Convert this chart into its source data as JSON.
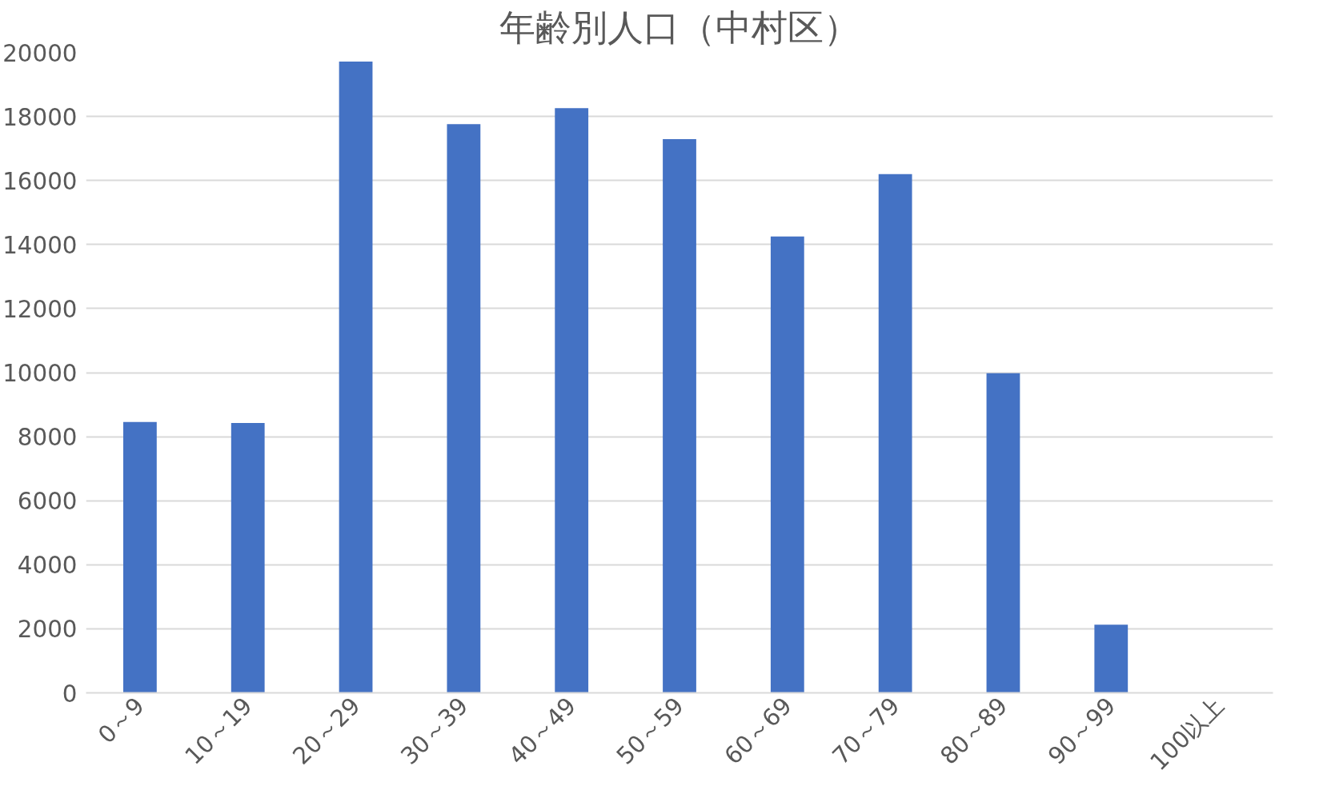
{
  "chart_data": {
    "type": "bar",
    "title": "年齢別人口（中村区）",
    "categories": [
      "0～9",
      "10～19",
      "20～29",
      "30～39",
      "40～49",
      "50～59",
      "60～69",
      "70～79",
      "80～89",
      "90～99",
      "100以上"
    ],
    "series": [
      {
        "color": "#4472c4",
        "values": [
          8460,
          8430,
          19710,
          17760,
          18260,
          17290,
          14250,
          16200,
          9980,
          2130,
          0
        ]
      }
    ],
    "ylim": [
      0,
      20000
    ],
    "yticks": [
      0,
      2000,
      4000,
      6000,
      8000,
      10000,
      12000,
      14000,
      16000,
      18000,
      20000
    ],
    "grid": "y"
  }
}
